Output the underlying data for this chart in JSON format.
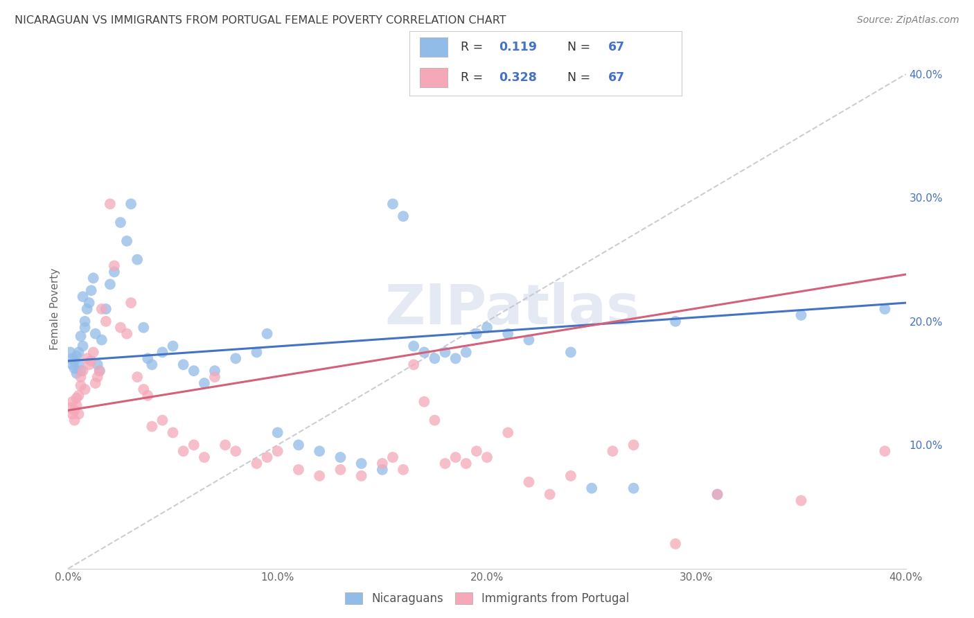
{
  "title": "NICARAGUAN VS IMMIGRANTS FROM PORTUGAL FEMALE POVERTY CORRELATION CHART",
  "source": "Source: ZipAtlas.com",
  "ylabel": "Female Poverty",
  "xlim": [
    0.0,
    0.4
  ],
  "ylim": [
    0.0,
    0.42
  ],
  "x_ticks": [
    0.0,
    0.1,
    0.2,
    0.3,
    0.4
  ],
  "y_ticks_right": [
    0.1,
    0.2,
    0.3,
    0.4
  ],
  "x_tick_labels": [
    "0.0%",
    "10.0%",
    "20.0%",
    "30.0%",
    "40.0%"
  ],
  "y_tick_labels_right": [
    "10.0%",
    "20.0%",
    "30.0%",
    "40.0%"
  ],
  "watermark": "ZIPatlas",
  "color_nicaraguan": "#92bce8",
  "color_portugal": "#f4a8b8",
  "color_line_nicaraguan": "#4472c4",
  "color_line_portugal": "#d4607a",
  "color_line_dashed": "#c0c0cc",
  "background_color": "#ffffff",
  "grid_color": "#d8d8e4",
  "title_color": "#404040",
  "source_color": "#808080",
  "nic_line_x0": 0.0,
  "nic_line_y0": 0.168,
  "nic_line_x1": 0.4,
  "nic_line_y1": 0.215,
  "por_line_x0": 0.0,
  "por_line_y0": 0.128,
  "por_line_x1": 0.4,
  "por_line_y1": 0.238,
  "scatter_nicaraguan_x": [
    0.001,
    0.002,
    0.002,
    0.003,
    0.003,
    0.004,
    0.004,
    0.005,
    0.005,
    0.006,
    0.006,
    0.007,
    0.007,
    0.008,
    0.008,
    0.009,
    0.01,
    0.011,
    0.012,
    0.013,
    0.014,
    0.015,
    0.016,
    0.018,
    0.02,
    0.022,
    0.025,
    0.028,
    0.03,
    0.033,
    0.036,
    0.038,
    0.04,
    0.045,
    0.05,
    0.055,
    0.06,
    0.065,
    0.07,
    0.08,
    0.09,
    0.095,
    0.1,
    0.11,
    0.12,
    0.13,
    0.14,
    0.15,
    0.155,
    0.16,
    0.165,
    0.17,
    0.175,
    0.18,
    0.185,
    0.19,
    0.195,
    0.2,
    0.21,
    0.22,
    0.24,
    0.25,
    0.27,
    0.29,
    0.31,
    0.35,
    0.39
  ],
  "scatter_nicaraguan_y": [
    0.175,
    0.17,
    0.165,
    0.168,
    0.162,
    0.172,
    0.158,
    0.165,
    0.175,
    0.16,
    0.188,
    0.18,
    0.22,
    0.195,
    0.2,
    0.21,
    0.215,
    0.225,
    0.235,
    0.19,
    0.165,
    0.16,
    0.185,
    0.21,
    0.23,
    0.24,
    0.28,
    0.265,
    0.295,
    0.25,
    0.195,
    0.17,
    0.165,
    0.175,
    0.18,
    0.165,
    0.16,
    0.15,
    0.16,
    0.17,
    0.175,
    0.19,
    0.11,
    0.1,
    0.095,
    0.09,
    0.085,
    0.08,
    0.295,
    0.285,
    0.18,
    0.175,
    0.17,
    0.175,
    0.17,
    0.175,
    0.19,
    0.195,
    0.19,
    0.185,
    0.175,
    0.065,
    0.065,
    0.2,
    0.06,
    0.205,
    0.21
  ],
  "scatter_portugal_x": [
    0.001,
    0.002,
    0.002,
    0.003,
    0.003,
    0.004,
    0.004,
    0.005,
    0.005,
    0.006,
    0.006,
    0.007,
    0.008,
    0.009,
    0.01,
    0.011,
    0.012,
    0.013,
    0.014,
    0.015,
    0.016,
    0.018,
    0.02,
    0.022,
    0.025,
    0.028,
    0.03,
    0.033,
    0.036,
    0.038,
    0.04,
    0.045,
    0.05,
    0.055,
    0.06,
    0.065,
    0.07,
    0.075,
    0.08,
    0.09,
    0.095,
    0.1,
    0.11,
    0.12,
    0.13,
    0.14,
    0.15,
    0.155,
    0.16,
    0.165,
    0.17,
    0.175,
    0.18,
    0.185,
    0.19,
    0.195,
    0.2,
    0.21,
    0.22,
    0.23,
    0.24,
    0.26,
    0.27,
    0.29,
    0.31,
    0.35,
    0.39
  ],
  "scatter_portugal_y": [
    0.13,
    0.125,
    0.135,
    0.128,
    0.12,
    0.138,
    0.132,
    0.125,
    0.14,
    0.148,
    0.155,
    0.16,
    0.145,
    0.17,
    0.165,
    0.168,
    0.175,
    0.15,
    0.155,
    0.16,
    0.21,
    0.2,
    0.295,
    0.245,
    0.195,
    0.19,
    0.215,
    0.155,
    0.145,
    0.14,
    0.115,
    0.12,
    0.11,
    0.095,
    0.1,
    0.09,
    0.155,
    0.1,
    0.095,
    0.085,
    0.09,
    0.095,
    0.08,
    0.075,
    0.08,
    0.075,
    0.085,
    0.09,
    0.08,
    0.165,
    0.135,
    0.12,
    0.085,
    0.09,
    0.085,
    0.095,
    0.09,
    0.11,
    0.07,
    0.06,
    0.075,
    0.095,
    0.1,
    0.02,
    0.06,
    0.055,
    0.095
  ]
}
